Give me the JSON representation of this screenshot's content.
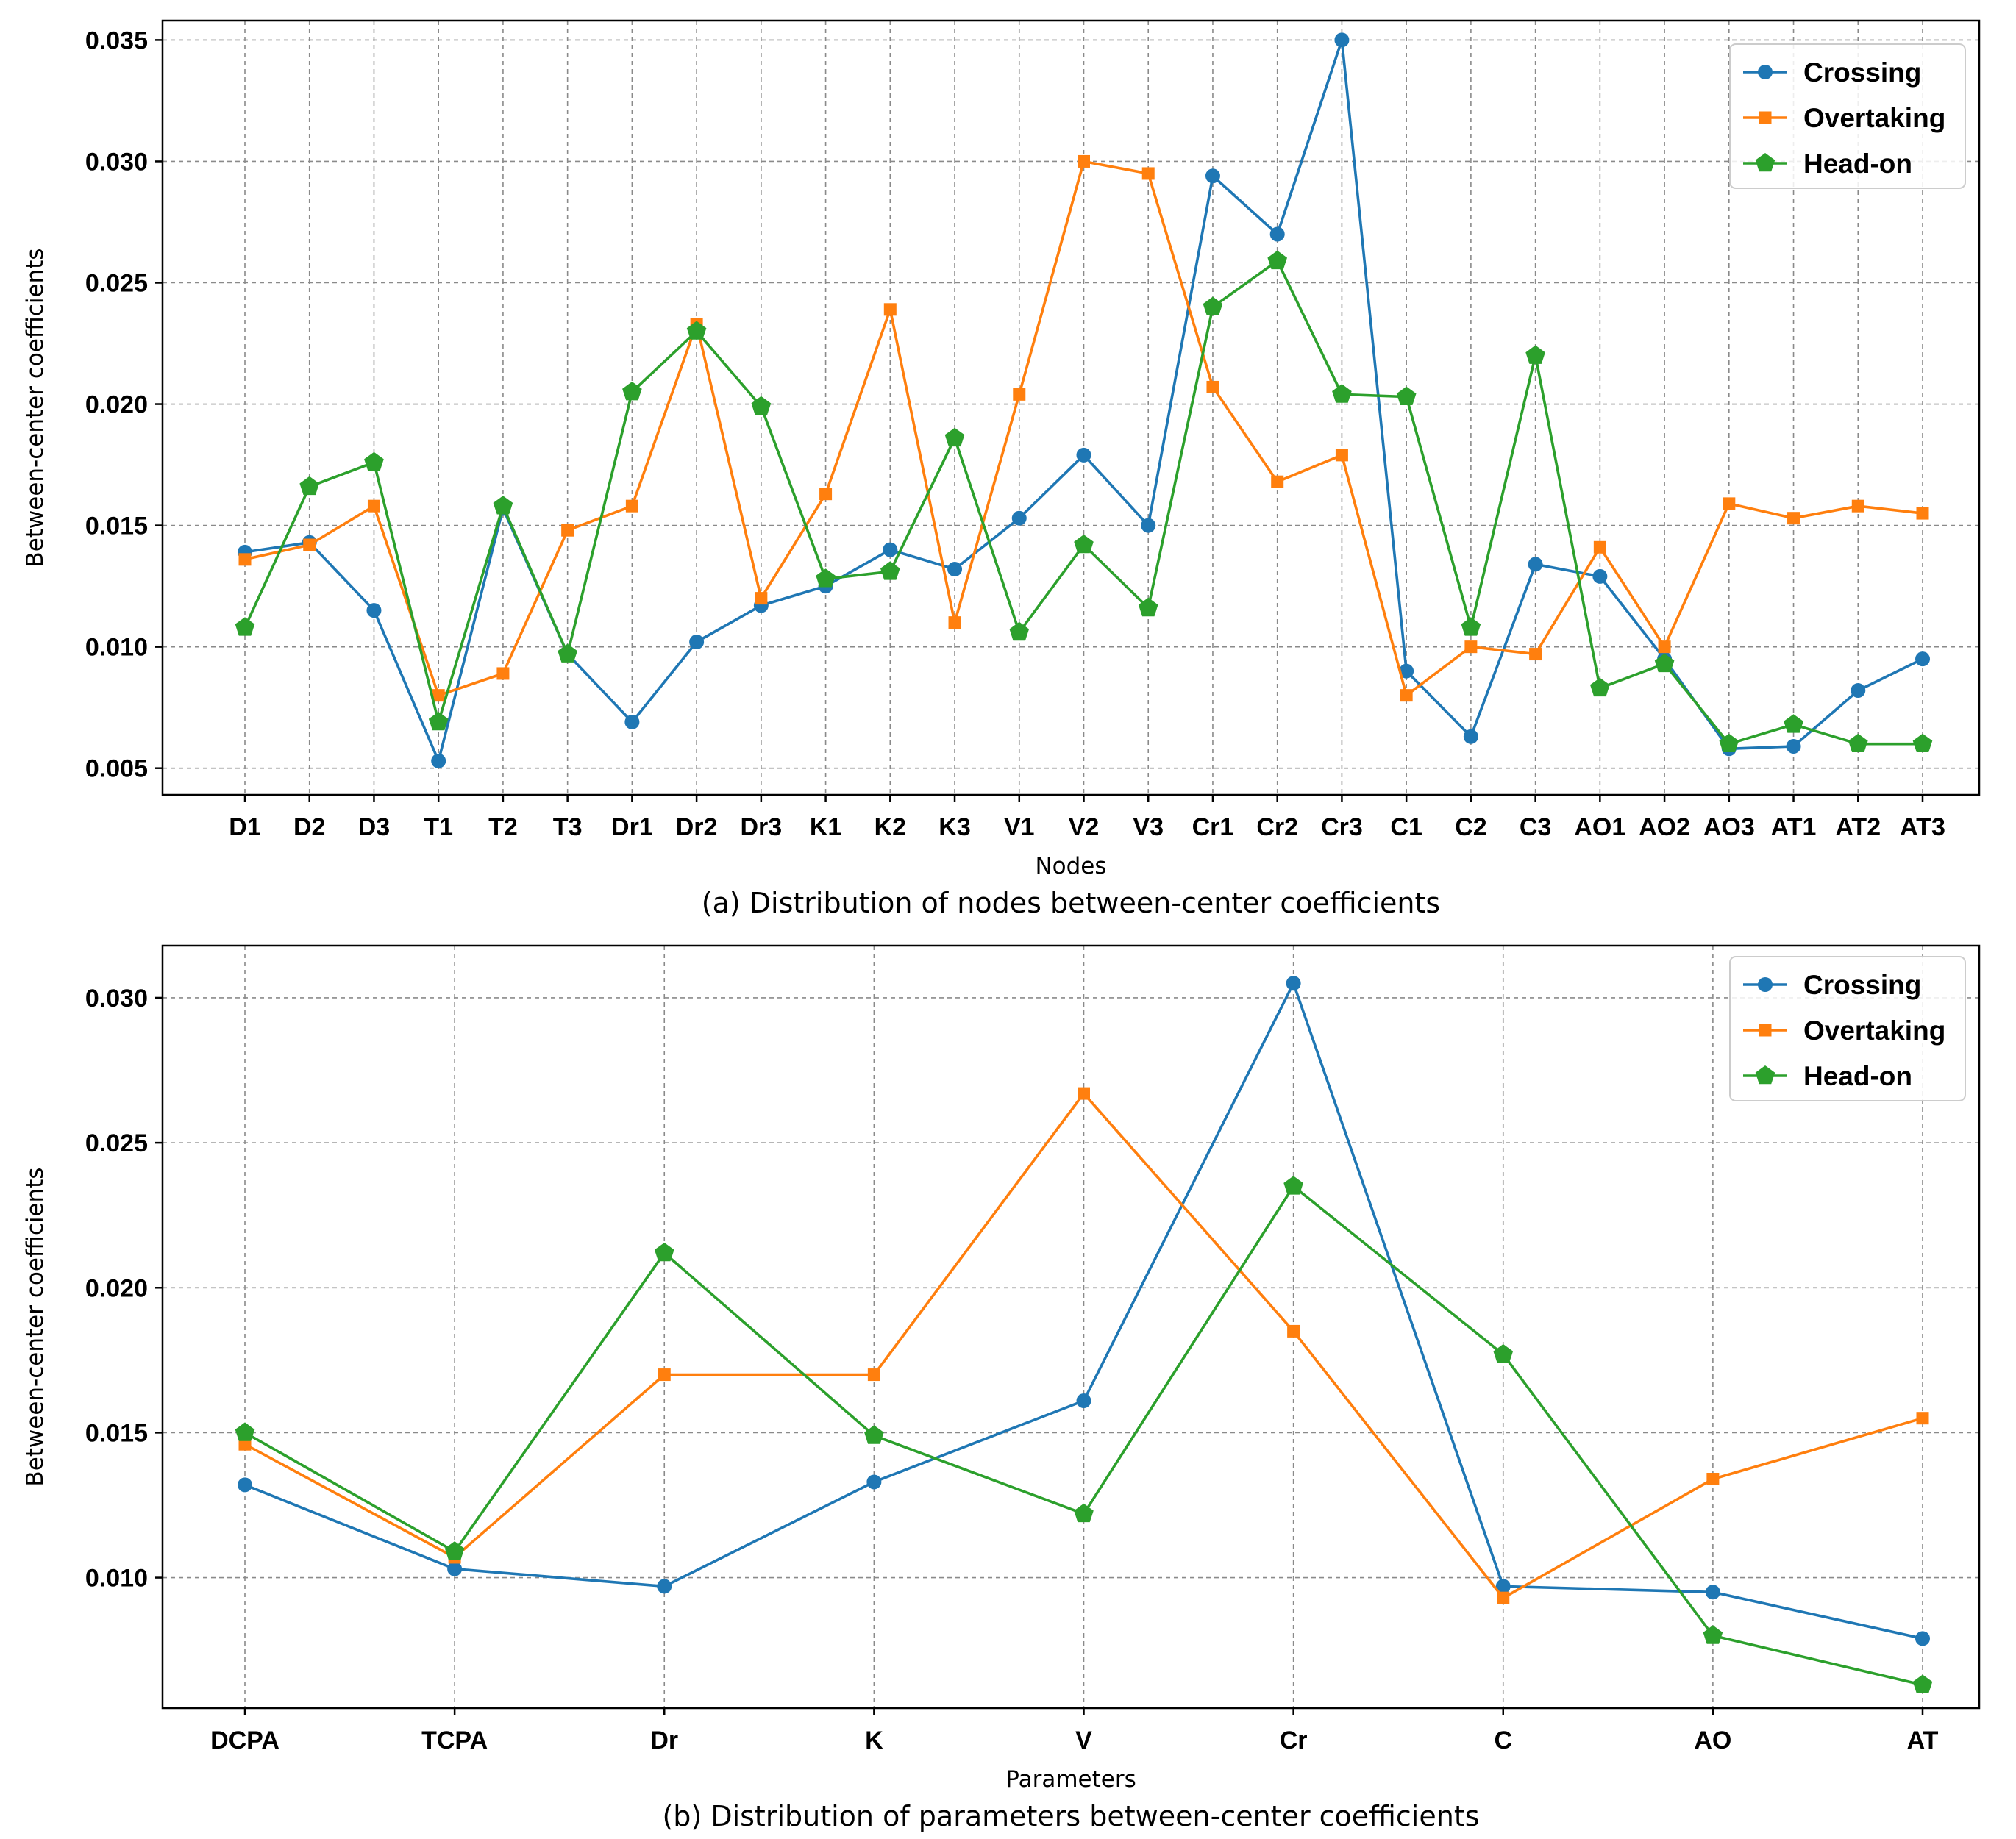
{
  "colors": {
    "Crossing": "#1f77b4",
    "Overtaking": "#ff7f0e",
    "Head-on": "#2ca02c"
  },
  "chart_data": [
    {
      "type": "line",
      "title": "",
      "caption": "(a) Distribution of nodes between-center coefficients",
      "xlabel": "Nodes",
      "ylabel": "Between-center coefficients",
      "ylim": [
        0.0039,
        0.0358
      ],
      "yticks": [
        0.005,
        0.01,
        0.015,
        0.02,
        0.025,
        0.03,
        0.035
      ],
      "ytick_labels": [
        "0.005",
        "0.010",
        "0.015",
        "0.020",
        "0.025",
        "0.030",
        "0.035"
      ],
      "grid": true,
      "legend_position": "top-right",
      "categories": [
        "D1",
        "D2",
        "D3",
        "T1",
        "T2",
        "T3",
        "Dr1",
        "Dr2",
        "Dr3",
        "K1",
        "K2",
        "K3",
        "V1",
        "V2",
        "V3",
        "Cr1",
        "Cr2",
        "Cr3",
        "C1",
        "C2",
        "C3",
        "AO1",
        "AO2",
        "AO3",
        "AT1",
        "AT2",
        "AT3"
      ],
      "series": [
        {
          "name": "Crossing",
          "marker": "circle",
          "values": [
            0.0139,
            0.0143,
            0.0115,
            0.0053,
            0.0157,
            0.0097,
            0.0069,
            0.0102,
            0.0117,
            0.0125,
            0.014,
            0.0132,
            0.0153,
            0.0179,
            0.015,
            0.0294,
            0.027,
            0.035,
            0.009,
            0.0063,
            0.0134,
            0.0129,
            0.0095,
            0.0058,
            0.0059,
            0.0082,
            0.0095
          ]
        },
        {
          "name": "Overtaking",
          "marker": "square",
          "values": [
            0.0136,
            0.0142,
            0.0158,
            0.008,
            0.0089,
            0.0148,
            0.0158,
            0.0233,
            0.012,
            0.0163,
            0.0239,
            0.011,
            0.0204,
            0.03,
            0.0295,
            0.0207,
            0.0168,
            0.0179,
            0.008,
            0.01,
            0.0097,
            0.0141,
            0.01,
            0.0159,
            0.0153,
            0.0158,
            0.0155
          ]
        },
        {
          "name": "Head-on",
          "marker": "pentagon",
          "values": [
            0.0108,
            0.0166,
            0.0176,
            0.0069,
            0.0158,
            0.0097,
            0.0205,
            0.023,
            0.0199,
            0.0128,
            0.0131,
            0.0186,
            0.0106,
            0.0142,
            0.0116,
            0.024,
            0.0259,
            0.0204,
            0.0203,
            0.0108,
            0.022,
            0.0083,
            0.0093,
            0.006,
            0.0068,
            0.006,
            0.006
          ]
        }
      ]
    },
    {
      "type": "line",
      "title": "",
      "caption": "(b) Distribution of parameters between-center coefficients",
      "xlabel": "Parameters",
      "ylabel": "Between-center coefficients",
      "ylim": [
        0.0055,
        0.0318
      ],
      "yticks": [
        0.01,
        0.015,
        0.02,
        0.025,
        0.03
      ],
      "ytick_labels": [
        "0.010",
        "0.015",
        "0.020",
        "0.025",
        "0.030"
      ],
      "grid": true,
      "legend_position": "top-right",
      "categories": [
        "DCPA",
        "TCPA",
        "Dr",
        "K",
        "V",
        "Cr",
        "C",
        "AO",
        "AT"
      ],
      "series": [
        {
          "name": "Crossing",
          "marker": "circle",
          "values": [
            0.0132,
            0.0103,
            0.0097,
            0.0133,
            0.0161,
            0.0305,
            0.0097,
            0.0095,
            0.0079
          ]
        },
        {
          "name": "Overtaking",
          "marker": "square",
          "values": [
            0.0146,
            0.0107,
            0.017,
            0.017,
            0.0267,
            0.0185,
            0.0093,
            0.0134,
            0.0155
          ]
        },
        {
          "name": "Head-on",
          "marker": "pentagon",
          "values": [
            0.015,
            0.0109,
            0.0212,
            0.0149,
            0.0122,
            0.0235,
            0.0177,
            0.008,
            0.0063
          ]
        }
      ]
    }
  ]
}
